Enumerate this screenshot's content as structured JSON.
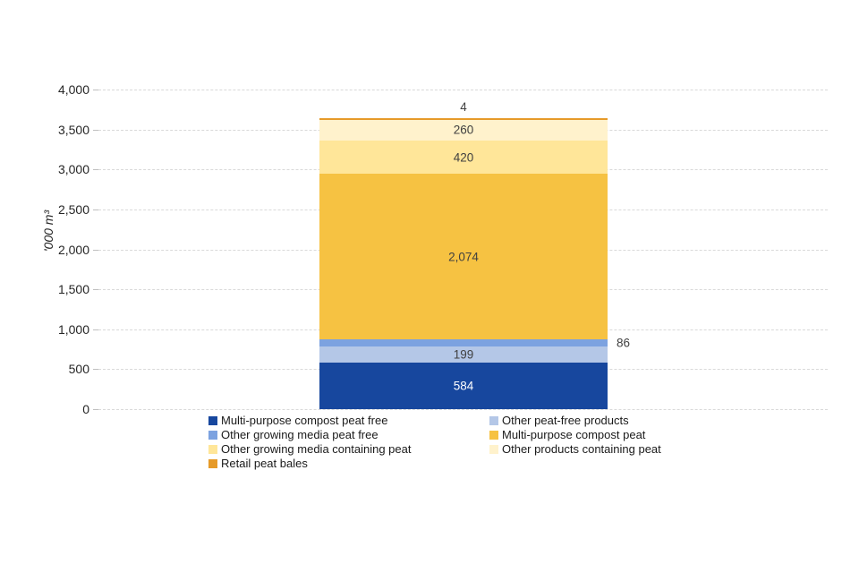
{
  "chart": {
    "background": "#ffffff",
    "grid_color": "#d9d9d9",
    "tick_mark_color": "#bfbfbf",
    "axis_text_color": "#262626",
    "y_ticks": [
      {
        "value": 4000,
        "label": "4,000"
      },
      {
        "value": 3500,
        "label": "3,500"
      },
      {
        "value": 3000,
        "label": "3,000"
      },
      {
        "value": 2500,
        "label": "2,500"
      },
      {
        "value": 2000,
        "label": "2,000"
      },
      {
        "value": 1500,
        "label": "1,500"
      },
      {
        "value": 1000,
        "label": "1,000"
      },
      {
        "value": 500,
        "label": "500"
      },
      {
        "value": 0,
        "label": "0"
      }
    ]
  },
  "chart_data": {
    "type": "bar",
    "stacked": true,
    "categories": [
      ""
    ],
    "title": "",
    "xlabel": "",
    "ylabel": "'000 m³",
    "ylim": [
      0,
      4000
    ],
    "grid": "horizontal-dashed",
    "legend_position": "bottom",
    "series": [
      {
        "name": "Multi-purpose compost peat free",
        "values": [
          584
        ],
        "label": "584",
        "color": "#17479e",
        "label_color": "#ffffff",
        "label_placement": "inside"
      },
      {
        "name": "Other peat-free products",
        "values": [
          199
        ],
        "label": "199",
        "color": "#b4c7e7",
        "label_color": "#404040",
        "label_placement": "inside"
      },
      {
        "name": "Other growing media peat free",
        "values": [
          86
        ],
        "label": "86",
        "color": "#7ca2e0",
        "label_color": "#404040",
        "label_placement": "right"
      },
      {
        "name": "Multi-purpose compost peat",
        "values": [
          2074
        ],
        "label": "2,074",
        "color": "#f6c242",
        "label_color": "#404040",
        "label_placement": "inside"
      },
      {
        "name": "Other growing media containing peat",
        "values": [
          420
        ],
        "label": "420",
        "color": "#ffe699",
        "label_color": "#404040",
        "label_placement": "inside"
      },
      {
        "name": "Other products containing peat",
        "values": [
          260
        ],
        "label": "260",
        "color": "#fff2cc",
        "label_color": "#404040",
        "label_placement": "inside"
      },
      {
        "name": "Retail peat bales",
        "values": [
          4
        ],
        "label": "4",
        "color": "#e69a28",
        "label_color": "#404040",
        "label_placement": "top"
      }
    ]
  }
}
